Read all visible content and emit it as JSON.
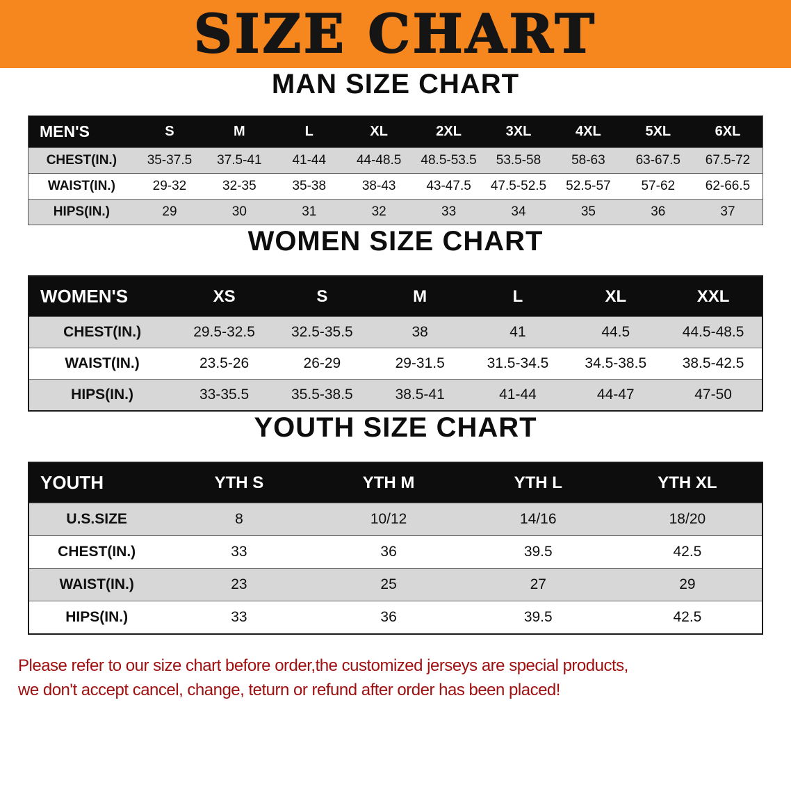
{
  "banner": {
    "title": "SIZE CHART"
  },
  "colors": {
    "banner_bg": "#f6861e",
    "table_header_bg": "#0d0d0d",
    "row_stripe": "#d7d7d7",
    "notice_text": "#a01010"
  },
  "sections": [
    {
      "heading": "MAN SIZE CHART",
      "table": {
        "header": [
          "MEN'S",
          "S",
          "M",
          "L",
          "XL",
          "2XL",
          "3XL",
          "4XL",
          "5XL",
          "6XL"
        ],
        "rows": [
          {
            "label": "CHEST(IN.)",
            "values": [
              "35-37.5",
              "37.5-41",
              "41-44",
              "44-48.5",
              "48.5-53.5",
              "53.5-58",
              "58-63",
              "63-67.5",
              "67.5-72"
            ]
          },
          {
            "label": "WAIST(IN.)",
            "values": [
              "29-32",
              "32-35",
              "35-38",
              "38-43",
              "43-47.5",
              "47.5-52.5",
              "52.5-57",
              "57-62",
              "62-66.5"
            ]
          },
          {
            "label": "HIPS(IN.)",
            "values": [
              "29",
              "30",
              "31",
              "32",
              "33",
              "34",
              "35",
              "36",
              "37"
            ]
          }
        ]
      }
    },
    {
      "heading": "WOMEN SIZE CHART",
      "table": {
        "header": [
          "WOMEN'S",
          "XS",
          "S",
          "M",
          "L",
          "XL",
          "XXL"
        ],
        "rows": [
          {
            "label": "CHEST(IN.)",
            "values": [
              "29.5-32.5",
              "32.5-35.5",
              "38",
              "41",
              "44.5",
              "44.5-48.5"
            ]
          },
          {
            "label": "WAIST(IN.)",
            "values": [
              "23.5-26",
              "26-29",
              "29-31.5",
              "31.5-34.5",
              "34.5-38.5",
              "38.5-42.5"
            ]
          },
          {
            "label": "HIPS(IN.)",
            "values": [
              "33-35.5",
              "35.5-38.5",
              "38.5-41",
              "41-44",
              "44-47",
              "47-50"
            ]
          }
        ]
      }
    },
    {
      "heading": "YOUTH SIZE CHART",
      "table": {
        "header": [
          "YOUTH",
          "YTH S",
          "YTH M",
          "YTH L",
          "YTH XL"
        ],
        "rows": [
          {
            "label": "U.S.SIZE",
            "values": [
              "8",
              "10/12",
              "14/16",
              "18/20"
            ]
          },
          {
            "label": "CHEST(IN.)",
            "values": [
              "33",
              "36",
              "39.5",
              "42.5"
            ]
          },
          {
            "label": "WAIST(IN.)",
            "values": [
              "23",
              "25",
              "27",
              "29"
            ]
          },
          {
            "label": "HIPS(IN.)",
            "values": [
              "33",
              "36",
              "39.5",
              "42.5"
            ]
          }
        ]
      }
    }
  ],
  "footer": {
    "lines": [
      "Please refer to our size chart before order,the customized jerseys are special products,",
      "we don't accept cancel, change, teturn or refund after order has been placed!"
    ]
  }
}
